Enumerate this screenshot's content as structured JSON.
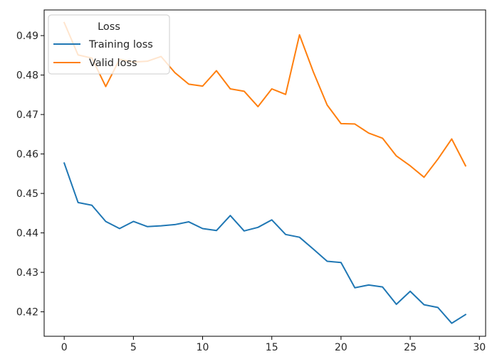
{
  "chart_data": {
    "type": "line",
    "x": [
      0,
      1,
      2,
      3,
      4,
      5,
      6,
      7,
      8,
      9,
      10,
      11,
      12,
      13,
      14,
      15,
      16,
      17,
      18,
      19,
      20,
      21,
      22,
      23,
      24,
      25,
      26,
      27,
      28,
      29
    ],
    "series": [
      {
        "name": "Training loss",
        "color": "#1f77b4",
        "values": [
          0.4577,
          0.4477,
          0.447,
          0.4429,
          0.4411,
          0.4429,
          0.4416,
          0.4418,
          0.4421,
          0.4428,
          0.4411,
          0.4406,
          0.4444,
          0.4405,
          0.4414,
          0.4433,
          0.4396,
          0.4389,
          0.4359,
          0.4328,
          0.4325,
          0.4261,
          0.4268,
          0.4263,
          0.4219,
          0.4252,
          0.4218,
          0.4211,
          0.4171,
          0.4193
        ]
      },
      {
        "name": "Valid loss",
        "color": "#ff7f0e",
        "values": [
          0.4933,
          0.4851,
          0.4843,
          0.4771,
          0.484,
          0.4833,
          0.4835,
          0.4847,
          0.4806,
          0.4777,
          0.4772,
          0.4811,
          0.4765,
          0.4759,
          0.472,
          0.4765,
          0.4751,
          0.4902,
          0.4808,
          0.4724,
          0.4677,
          0.4676,
          0.4653,
          0.464,
          0.4595,
          0.457,
          0.4541,
          0.4587,
          0.4638,
          0.457
        ]
      }
    ],
    "xlim": [
      -1.45,
      30.45
    ],
    "ylim": [
      0.4138,
      0.4965
    ],
    "x_ticks": [
      "0",
      "5",
      "10",
      "15",
      "20",
      "25",
      "30"
    ],
    "y_ticks": [
      "0.42",
      "0.43",
      "0.44",
      "0.45",
      "0.46",
      "0.47",
      "0.48",
      "0.49"
    ],
    "title": "",
    "xlabel": "",
    "ylabel": "",
    "grid": false,
    "legend": {
      "title": "Loss",
      "placement": "top-left"
    }
  }
}
